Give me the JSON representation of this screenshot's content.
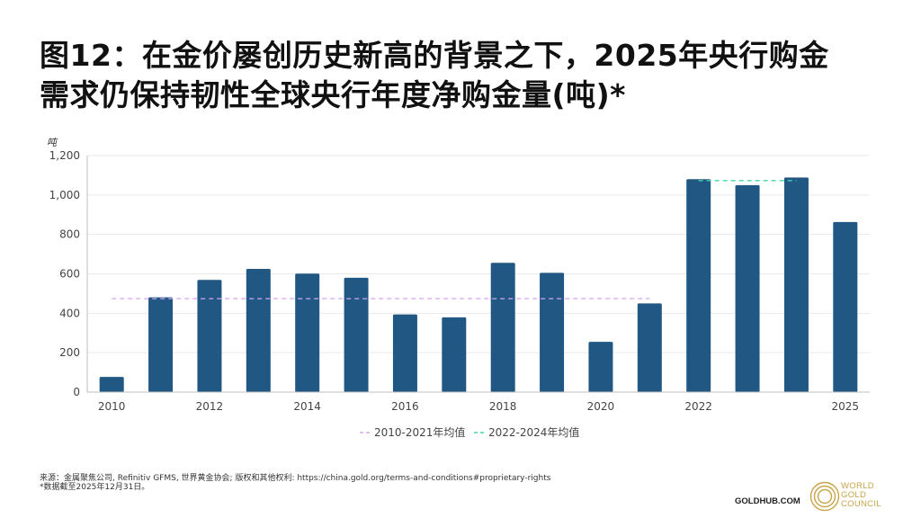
{
  "title": {
    "line1": "图12：在金价屡创历史新高的背景之下，2025年央行购金",
    "line2": "需求仍保持韧性全球央行年度净购金量(吨)*"
  },
  "colors": {
    "bar": "#215783",
    "avg1": "#d8a6f2",
    "avg2": "#3fd6a8",
    "grid": "#e9e9e9",
    "axis": "#bfbfbf",
    "logo_gold": "#c9a44a"
  },
  "chart_data": {
    "type": "bar",
    "title": "",
    "ylabel": "吨",
    "xlabel": "",
    "ylim": [
      0,
      1200
    ],
    "yticks": [
      0,
      200,
      400,
      600,
      800,
      1000,
      1200
    ],
    "ytick_labels": [
      "0",
      "200",
      "400",
      "600",
      "800",
      "1,000",
      "1,200"
    ],
    "categories": [
      "2010",
      "2011",
      "2012",
      "2013",
      "2014",
      "2015",
      "2016",
      "2017",
      "2018",
      "2019",
      "2020",
      "2021",
      "2022",
      "2023",
      "2024",
      "2025"
    ],
    "xtick_labels": [
      "2010",
      "",
      "2012",
      "",
      "2014",
      "",
      "2016",
      "",
      "2018",
      "",
      "2020",
      "",
      "2022",
      "",
      "",
      "2025"
    ],
    "series": [
      {
        "name": "年度净购金量",
        "values": [
          77,
          481,
          569,
          625,
          601,
          580,
          394,
          379,
          656,
          605,
          255,
          450,
          1080,
          1050,
          1089,
          863
        ]
      }
    ],
    "reference_lines": [
      {
        "name": "2010-2021年均值",
        "value": 474,
        "from": "2010",
        "to": "2021",
        "style": "dashed"
      },
      {
        "name": "2022-2024年均值",
        "value": 1073,
        "from": "2022",
        "to": "2024",
        "style": "dashed"
      }
    ],
    "grid": true,
    "legend": "bottom-center"
  },
  "legend": {
    "items": [
      "2010-2021年均值",
      "2022-2024年均值"
    ]
  },
  "footer": {
    "source": "来源：金属聚焦公司, Refinitiv GFMS, 世界黄金协会; 版权和其他权利: https://china.gold.org/terms-and-conditions#proprietary-rights",
    "note": "*数据截至2025年12月31日。",
    "goldhub": "GOLDHUB.COM",
    "logo_lines": [
      "WORLD",
      "GOLD",
      "COUNCIL"
    ]
  }
}
